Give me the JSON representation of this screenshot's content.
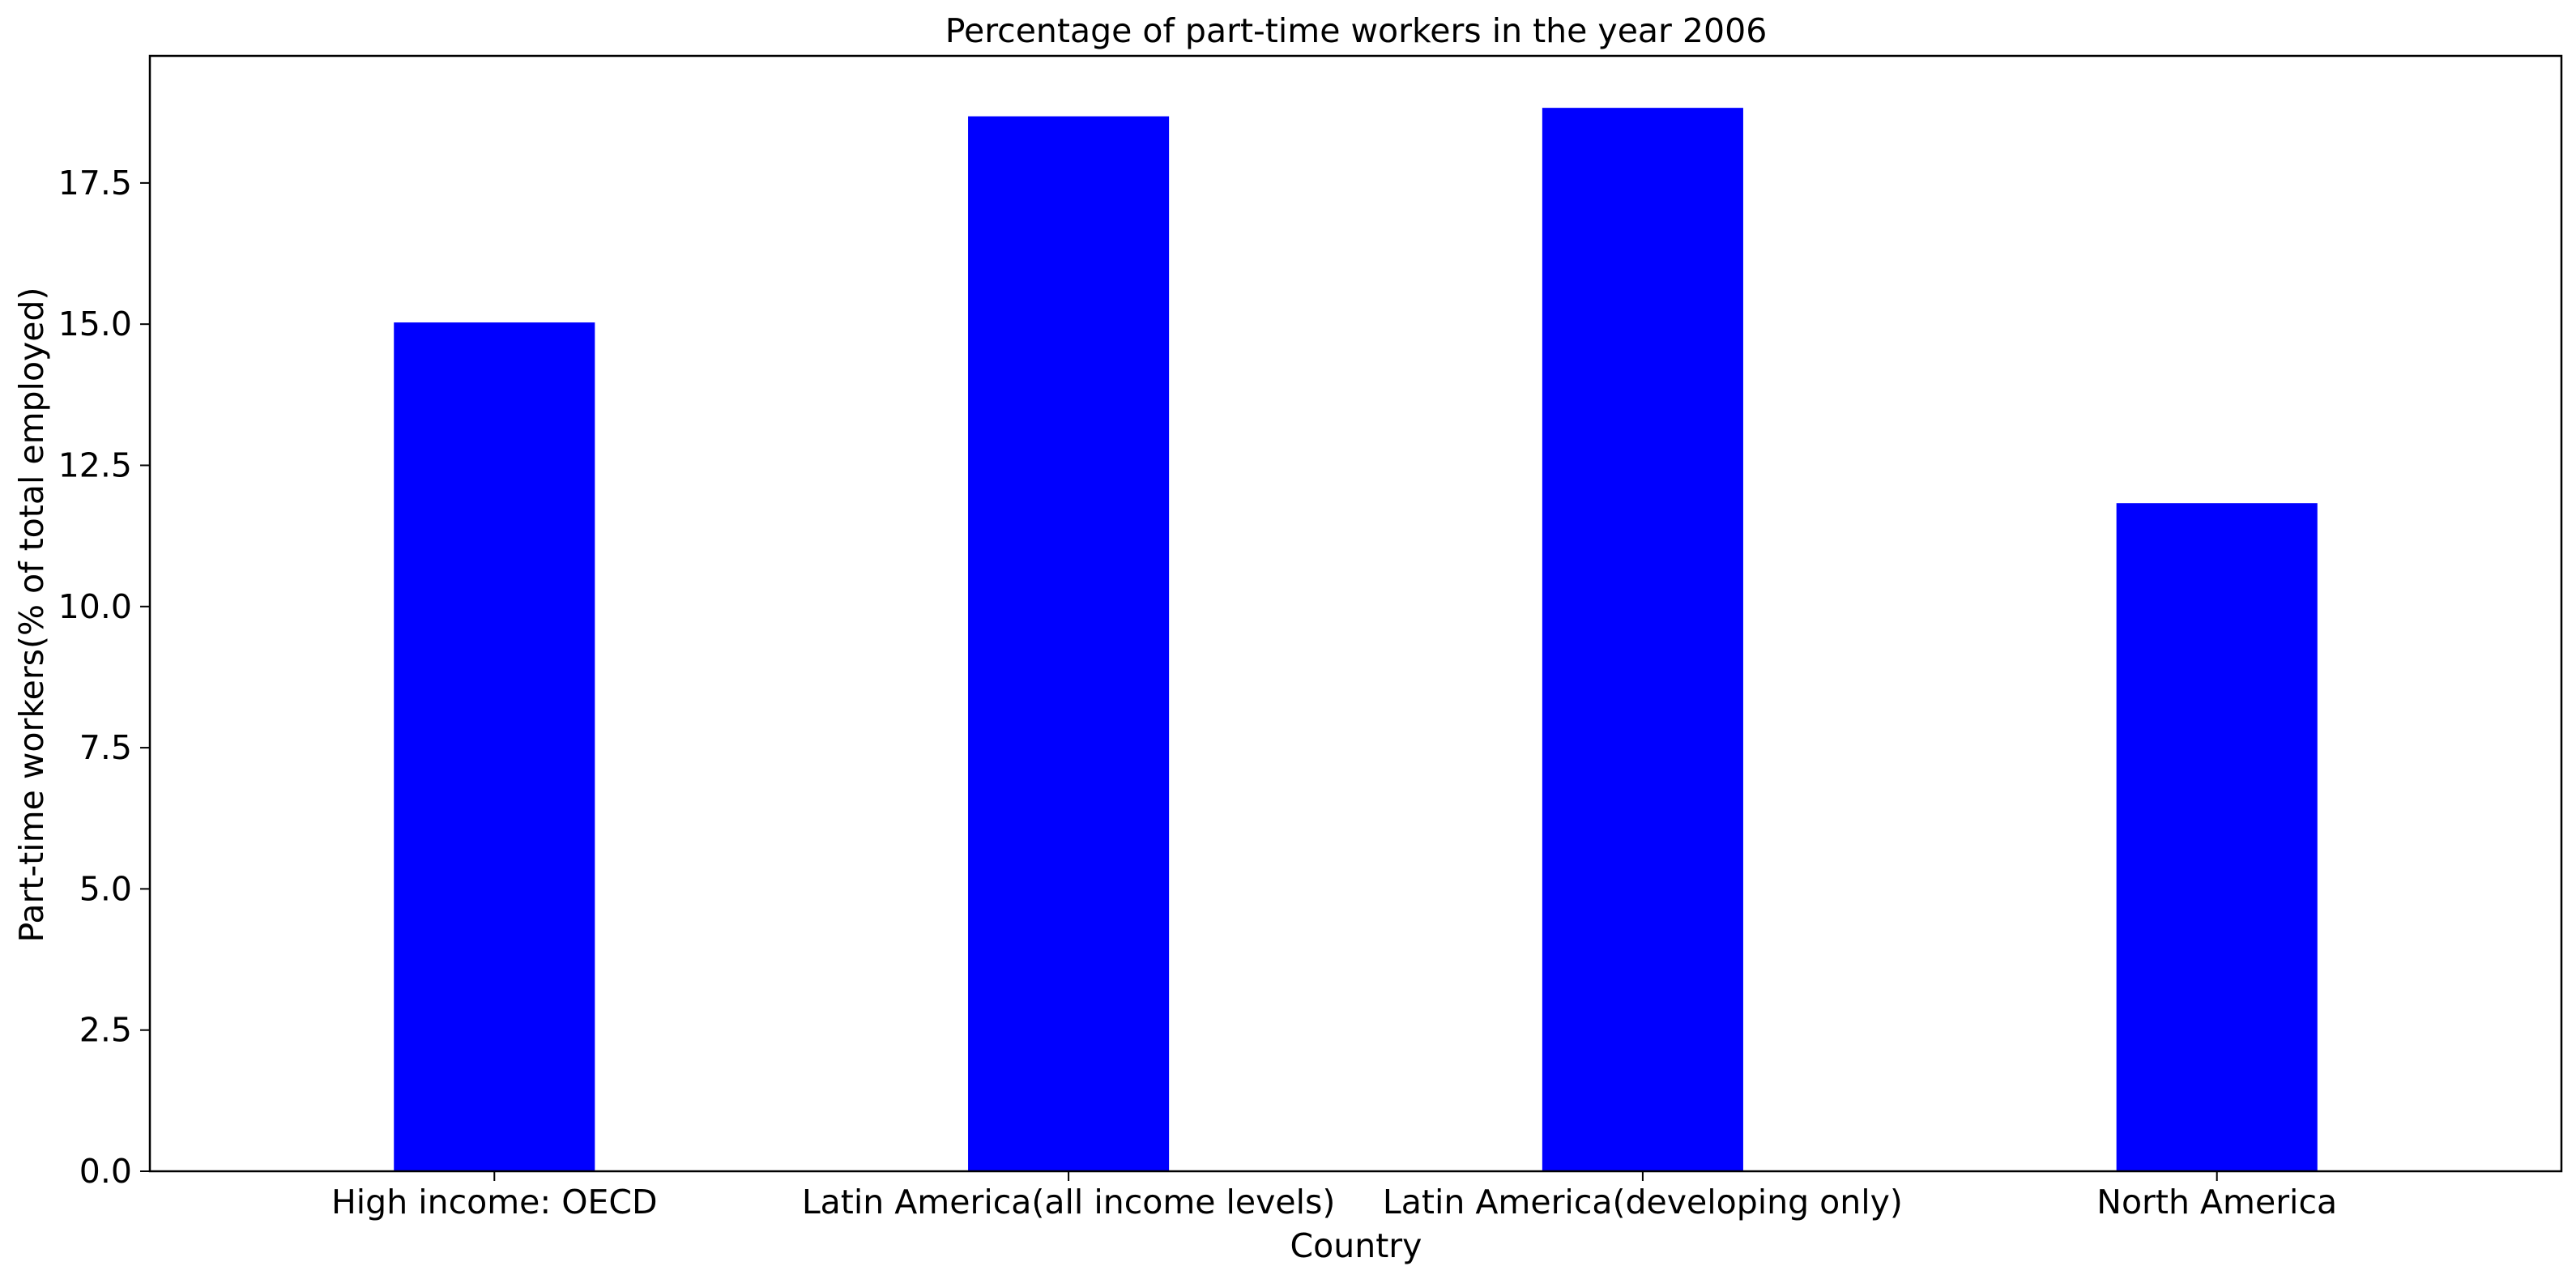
{
  "chart_data": {
    "type": "bar",
    "title": "Percentage of part-time workers in the year 2006",
    "xlabel": "Country",
    "ylabel": "Part-time workers(% of total employed)",
    "categories": [
      "High income: OECD",
      "Latin America(all income levels)",
      "Latin America(developing only)",
      "North America"
    ],
    "values": [
      15.03,
      18.68,
      18.83,
      11.83
    ],
    "ylim": [
      0,
      19.75
    ],
    "yticks": [
      "0.0",
      "2.5",
      "5.0",
      "7.5",
      "10.0",
      "12.5",
      "15.0",
      "17.5"
    ],
    "bar_color": "#0000ff",
    "grid": false,
    "legend": "none"
  }
}
